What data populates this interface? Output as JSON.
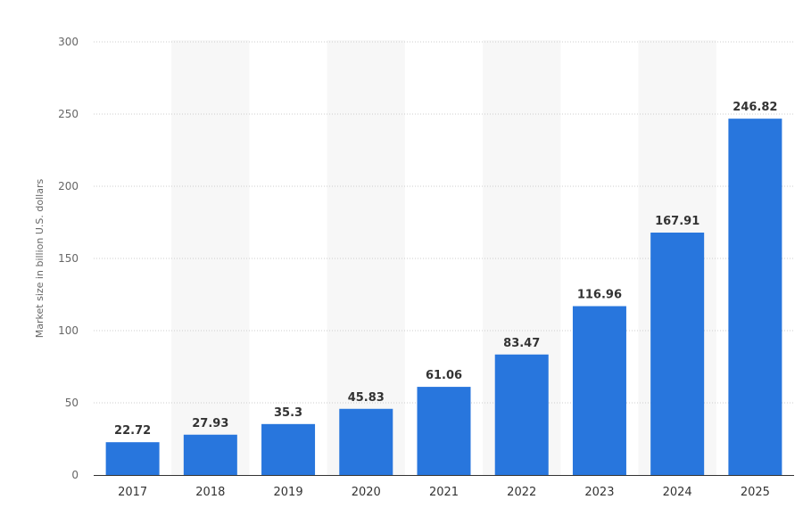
{
  "chart_data": {
    "type": "bar",
    "categories": [
      "2017",
      "2018",
      "2019",
      "2020",
      "2021",
      "2022",
      "2023",
      "2024",
      "2025"
    ],
    "values": [
      22.72,
      27.93,
      35.3,
      45.83,
      61.06,
      83.47,
      116.96,
      167.91,
      246.82
    ],
    "data_labels": [
      "22.72",
      "27.93",
      "35.3",
      "45.83",
      "61.06",
      "83.47",
      "116.96",
      "167.91",
      "246.82"
    ],
    "ylabel": "Market size in billion U.S. dollars",
    "ylim": [
      0,
      300
    ],
    "yticks": [
      "0",
      "50",
      "100",
      "150",
      "200",
      "250",
      "300"
    ],
    "grid": true,
    "alternate_column_shading": true,
    "colors": {
      "bar": "#2876DD",
      "grid": "#cccccc",
      "shade": "#f7f7f7",
      "axis": "#333333"
    }
  }
}
